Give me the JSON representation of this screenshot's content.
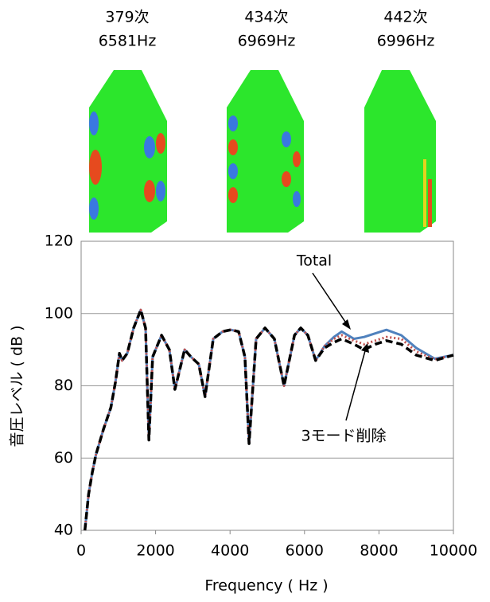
{
  "modes": [
    {
      "order": "379次",
      "freq": "6581Hz"
    },
    {
      "order": "434次",
      "freq": "6969Hz"
    },
    {
      "order": "442次",
      "freq": "6996Hz"
    }
  ],
  "chart_data": {
    "type": "line",
    "xlabel": "Frequency ( Hz )",
    "ylabel": "音圧レベル ( dB )",
    "x": [
      100,
      200,
      300,
      400,
      600,
      800,
      920,
      1030,
      1100,
      1240,
      1410,
      1600,
      1730,
      1820,
      1920,
      2160,
      2370,
      2520,
      2780,
      2950,
      3160,
      3330,
      3550,
      3800,
      4020,
      4230,
      4400,
      4510,
      4700,
      4940,
      5190,
      5450,
      5730,
      5900,
      6090,
      6300,
      6540,
      6790,
      7000,
      7330,
      7600,
      7900,
      8200,
      8600,
      9000,
      9500,
      10000
    ],
    "series": [
      {
        "name": "Total",
        "color": "#4f81bd",
        "style": "solid",
        "values": [
          40,
          50,
          56,
          61,
          68,
          74,
          81,
          89,
          87,
          89,
          96,
          101,
          96,
          65,
          88,
          94,
          90,
          79,
          90,
          88,
          86,
          77,
          93,
          95,
          95.5,
          95,
          88,
          64,
          93,
          96,
          93,
          80,
          94,
          96,
          94,
          87,
          91,
          93.5,
          95,
          93,
          93.5,
          94.5,
          95.5,
          94,
          90.5,
          87.5,
          88.5
        ]
      },
      {
        "color": "#c0504d",
        "style": "dotted",
        "values": [
          40,
          50,
          56,
          61,
          68,
          74,
          81,
          89,
          87,
          89,
          96,
          101,
          96,
          65,
          88,
          94,
          90,
          79,
          90,
          88,
          86,
          77,
          93,
          95,
          95.5,
          95,
          88,
          64,
          93,
          96,
          93,
          80,
          94,
          96,
          94,
          87,
          91,
          93,
          94,
          92.5,
          91.5,
          92.5,
          93.5,
          93,
          89.5,
          87.3,
          88.5
        ]
      },
      {
        "name": "3モード削除",
        "color": "#000000",
        "style": "dashed",
        "values": [
          40,
          50,
          56,
          61,
          68,
          74,
          81,
          89,
          87,
          89,
          96,
          101,
          96,
          65,
          88,
          94,
          90,
          79,
          90,
          88,
          86,
          77,
          93,
          95,
          95.5,
          95,
          88,
          64,
          93,
          96,
          93,
          80,
          94,
          96,
          94,
          87,
          90.5,
          92,
          93,
          91.5,
          90,
          91.5,
          92.5,
          91.5,
          88.5,
          87,
          88.5
        ]
      }
    ],
    "xlim": [
      0,
      10000
    ],
    "xticks": [
      0,
      2000,
      4000,
      6000,
      8000,
      10000
    ],
    "ylim": [
      40,
      120
    ],
    "yticks": [
      40,
      60,
      80,
      100,
      120
    ],
    "grid": true
  }
}
